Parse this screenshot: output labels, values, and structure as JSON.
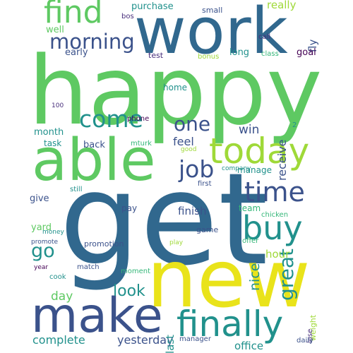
{
  "palette": {
    "yellow": "#e9e31a",
    "lime": "#9fd938",
    "green": "#5ec962",
    "mint": "#35b779",
    "teal": "#21918c",
    "blue": "#31688e",
    "indigo": "#3b528b",
    "purple": "#440154",
    "violet": "#472d7b"
  },
  "words": [
    {
      "text": "happy",
      "color": "green"
    },
    {
      "text": "get",
      "color": "blue"
    },
    {
      "text": "new",
      "color": "yellow"
    },
    {
      "text": "work",
      "color": "blue"
    },
    {
      "text": "able",
      "color": "green"
    },
    {
      "text": "make",
      "color": "indigo"
    },
    {
      "text": "today",
      "color": "lime"
    },
    {
      "text": "finally",
      "color": "teal"
    },
    {
      "text": "find",
      "color": "green"
    },
    {
      "text": "buy",
      "color": "teal"
    },
    {
      "text": "time",
      "color": "indigo"
    },
    {
      "text": "morning",
      "color": "indigo"
    },
    {
      "text": "come",
      "color": "teal"
    },
    {
      "text": "job",
      "color": "indigo"
    },
    {
      "text": "one",
      "color": "indigo"
    },
    {
      "text": "great",
      "color": "teal"
    },
    {
      "text": "go",
      "color": "teal"
    },
    {
      "text": "look",
      "color": "teal"
    },
    {
      "text": "complete",
      "color": "teal"
    },
    {
      "text": "yesterday",
      "color": "indigo"
    },
    {
      "text": "nice",
      "color": "teal"
    },
    {
      "text": "day",
      "color": "green"
    },
    {
      "text": "win",
      "color": "indigo"
    },
    {
      "text": "feel",
      "color": "indigo"
    },
    {
      "text": "receive",
      "color": "indigo"
    },
    {
      "text": "finish",
      "color": "indigo"
    },
    {
      "text": "hour",
      "color": "lime"
    },
    {
      "text": "last",
      "color": "teal"
    },
    {
      "text": "office",
      "color": "teal"
    },
    {
      "text": "really",
      "color": "lime"
    },
    {
      "text": "fly",
      "color": "indigo"
    },
    {
      "text": "purchase",
      "color": "teal"
    },
    {
      "text": "well",
      "color": "green"
    },
    {
      "text": "early",
      "color": "indigo"
    },
    {
      "text": "long",
      "color": "teal"
    },
    {
      "text": "test",
      "color": "violet"
    },
    {
      "text": "goal",
      "color": "purple"
    },
    {
      "text": "home",
      "color": "teal"
    },
    {
      "text": "month",
      "color": "teal"
    },
    {
      "text": "task",
      "color": "teal"
    },
    {
      "text": "back",
      "color": "indigo"
    },
    {
      "text": "manage",
      "color": "teal"
    },
    {
      "text": "give",
      "color": "indigo"
    },
    {
      "text": "pay",
      "color": "indigo"
    },
    {
      "text": "team",
      "color": "mint"
    },
    {
      "text": "game",
      "color": "indigo"
    },
    {
      "text": "yard",
      "color": "green"
    },
    {
      "text": "promotion",
      "color": "indigo"
    },
    {
      "text": "manager",
      "color": "indigo"
    },
    {
      "text": "weight",
      "color": "lime"
    },
    {
      "text": "bos",
      "color": "violet"
    },
    {
      "text": "small",
      "color": "indigo"
    },
    {
      "text": "call",
      "color": "violet"
    },
    {
      "text": "class",
      "color": "mint"
    },
    {
      "text": "bonus",
      "color": "lime"
    },
    {
      "text": "100",
      "color": "violet"
    },
    {
      "text": "phone",
      "color": "purple"
    },
    {
      "text": "2",
      "color": "teal"
    },
    {
      "text": "mturk",
      "color": "mint"
    },
    {
      "text": "good",
      "color": "lime"
    },
    {
      "text": "company",
      "color": "teal"
    },
    {
      "text": "still",
      "color": "teal"
    },
    {
      "text": "first",
      "color": "indigo"
    },
    {
      "text": "money",
      "color": "teal"
    },
    {
      "text": "chicken",
      "color": "mint"
    },
    {
      "text": "promote",
      "color": "indigo"
    },
    {
      "text": "offer",
      "color": "mint"
    },
    {
      "text": "play",
      "color": "lime"
    },
    {
      "text": "year",
      "color": "purple"
    },
    {
      "text": "match",
      "color": "indigo"
    },
    {
      "text": "moment",
      "color": "mint"
    },
    {
      "text": "cook",
      "color": "teal"
    },
    {
      "text": "lose",
      "color": "violet"
    },
    {
      "text": "daily",
      "color": "indigo"
    }
  ]
}
